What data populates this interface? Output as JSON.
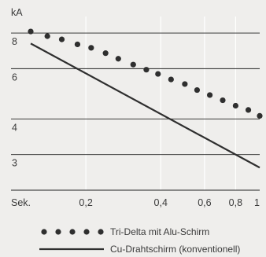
{
  "chart_data": {
    "type": "line",
    "y_unit": "kA",
    "x_unit": "Sek.",
    "x_scale": "log",
    "y_scale": "log",
    "xlim": [
      0.1,
      1
    ],
    "ylim": [
      2.25,
      8.8
    ],
    "y_ticks": [
      {
        "value": 8,
        "label": "8"
      },
      {
        "value": 6,
        "label": "6"
      },
      {
        "value": 4,
        "label": "4"
      },
      {
        "value": 3,
        "label": "3"
      }
    ],
    "x_ticks": [
      {
        "value": 0.2,
        "label": "0,2"
      },
      {
        "value": 0.4,
        "label": "0,4"
      },
      {
        "value": 0.6,
        "label": "0,6"
      },
      {
        "value": 0.8,
        "label": "0,8"
      },
      {
        "value": 1.0,
        "label": "1"
      }
    ],
    "grid": {
      "horizontal": true,
      "vertical": true
    },
    "legend_position": "bottom",
    "colors": {
      "background": "#efeeec",
      "grid": "#222222",
      "vgrid": "#ffffff",
      "series": "#2f2f2f"
    },
    "series": [
      {
        "name": "Tri-Delta mit Alu-Schirm",
        "style": "dotted",
        "x": [
          0.12,
          0.14,
          0.16,
          0.185,
          0.21,
          0.24,
          0.27,
          0.31,
          0.35,
          0.39,
          0.44,
          0.5,
          0.56,
          0.63,
          0.71,
          0.8,
          0.9,
          1.0
        ],
        "y": [
          8.1,
          7.8,
          7.6,
          7.3,
          7.1,
          6.8,
          6.5,
          6.2,
          5.95,
          5.75,
          5.5,
          5.3,
          5.05,
          4.85,
          4.65,
          4.45,
          4.3,
          4.1
        ]
      },
      {
        "name": "Cu-Drahtschirm (konventionell)",
        "style": "solid",
        "x": [
          0.12,
          1.0
        ],
        "y": [
          7.35,
          2.7
        ]
      }
    ]
  }
}
